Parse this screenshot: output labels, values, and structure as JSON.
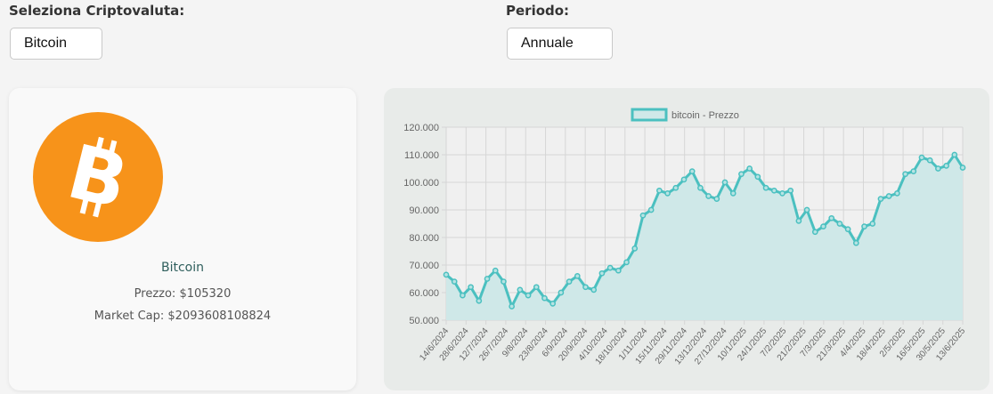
{
  "controls": {
    "crypto_label": "Seleziona Criptovaluta:",
    "crypto_value": "Bitcoin",
    "period_label": "Periodo:",
    "period_value": "Annuale"
  },
  "coin_card": {
    "name": "Bitcoin",
    "price_text": "Prezzo: $105320",
    "marketcap_text": "Market Cap: $2093608108824",
    "icon": "bitcoin-logo-icon",
    "icon_color": "#f7931a"
  },
  "chart_data": {
    "type": "area",
    "legend": "bitcoin - Prezzo",
    "legend_position": "top",
    "line_color": "#4bc0c0",
    "fill_color": "#cce8e8",
    "grid": true,
    "ylim": [
      50000,
      120000
    ],
    "ytick_labels": [
      "50.000",
      "60.000",
      "70.000",
      "80.000",
      "90.000",
      "100.000",
      "110.000",
      "120.000"
    ],
    "xtick_labels": [
      "14/6/2024",
      "28/6/2024",
      "12/7/2024",
      "26/7/2024",
      "9/8/2024",
      "23/8/2024",
      "6/9/2024",
      "20/9/2024",
      "4/10/2024",
      "18/10/2024",
      "1/11/2024",
      "15/11/2024",
      "29/11/2024",
      "13/12/2024",
      "27/12/2024",
      "10/1/2025",
      "24/1/2025",
      "7/2/2025",
      "21/2/2025",
      "7/3/2025",
      "21/3/2025",
      "4/4/2025",
      "18/4/2025",
      "2/5/2025",
      "16/5/2025",
      "30/5/2025",
      "13/6/2025"
    ],
    "series": [
      {
        "name": "bitcoin - Prezzo",
        "values": [
          66500,
          64000,
          59000,
          62000,
          57000,
          65000,
          68000,
          64000,
          55000,
          61000,
          59000,
          62000,
          58000,
          56000,
          60000,
          64000,
          66000,
          62000,
          61000,
          67000,
          69000,
          68000,
          71000,
          76000,
          88000,
          90000,
          97000,
          96000,
          98000,
          101000,
          104000,
          98000,
          95000,
          94000,
          100000,
          96000,
          103000,
          105000,
          102000,
          98000,
          97000,
          96000,
          97000,
          86000,
          90000,
          82000,
          84000,
          87000,
          85000,
          83000,
          78000,
          84000,
          85000,
          94000,
          95000,
          96000,
          103000,
          104000,
          109000,
          108000,
          105000,
          106000,
          110000,
          105320
        ]
      }
    ]
  }
}
